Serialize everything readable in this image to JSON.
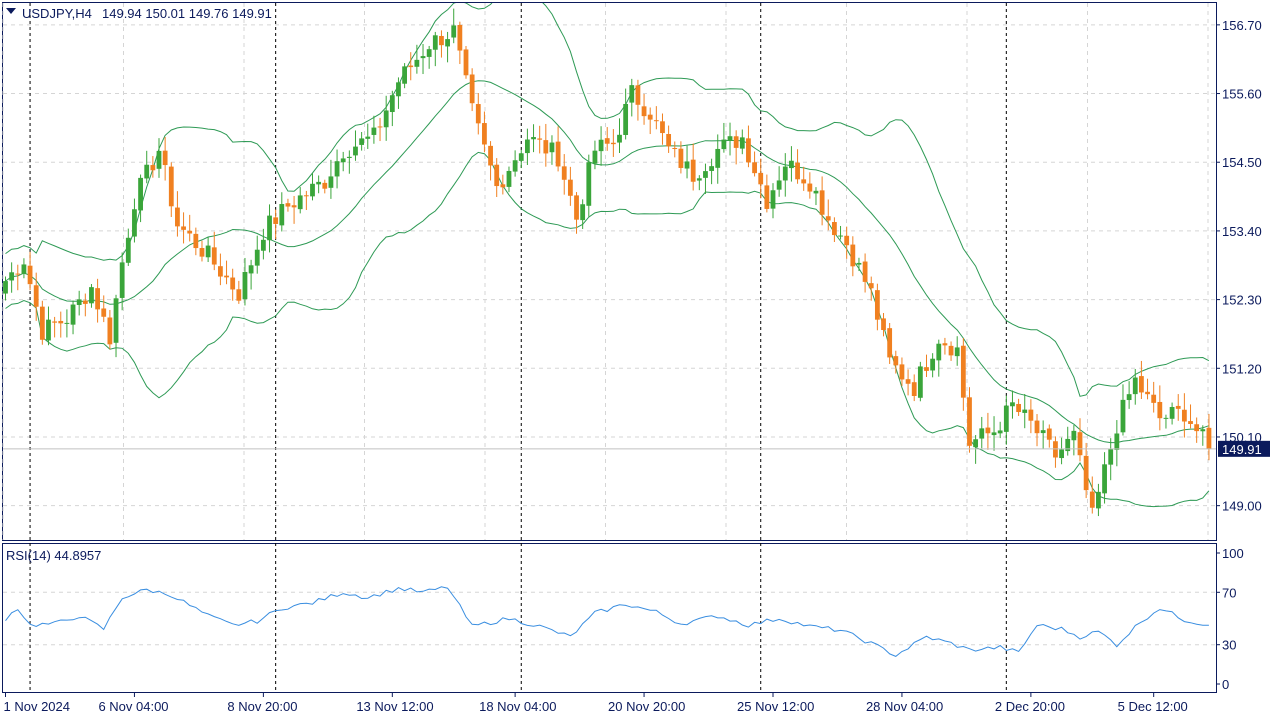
{
  "header": {
    "symbol": "USDJPY,H4",
    "ohlc": "149.94 150.01 149.76 149.91"
  },
  "rsi_header": {
    "label": "RSI(14) 44.8957"
  },
  "colors": {
    "bull": "#3aa53a",
    "bear": "#f08020",
    "band": "#2e9a55",
    "rsi_line": "#3a8ee0",
    "frame": "#0b1a5c",
    "grid": "#d5d5d5",
    "price_tag_bg": "#0b1a5c",
    "price_tag_text": "#ffffff"
  },
  "chart_data": [
    {
      "type": "candlestick",
      "panel": "price",
      "y_ticks": [
        "156.70",
        "155.60",
        "154.50",
        "153.40",
        "152.30",
        "151.20",
        "150.10",
        "149.00"
      ],
      "ylim": [
        148.45,
        157.05
      ],
      "current_price": "149.91",
      "x_ticks": [
        "1 Nov 2024",
        "6 Nov 04:00",
        "8 Nov 20:00",
        "13 Nov 12:00",
        "18 Nov 04:00",
        "20 Nov 20:00",
        "25 Nov 12:00",
        "28 Nov 04:00",
        "2 Dec 20:00",
        "5 Dec 12:00"
      ],
      "session_separators": [
        "4 Nov 2024",
        "11 Nov 2024",
        "18 Nov 2024",
        "25 Nov 2024",
        "2 Dec 2024"
      ],
      "candle_keyframes": [
        {
          "i": 0,
          "c": 152.6
        },
        {
          "i": 3,
          "c": 152.95
        },
        {
          "i": 6,
          "c": 151.8
        },
        {
          "i": 10,
          "c": 152.0
        },
        {
          "i": 14,
          "c": 152.5
        },
        {
          "i": 17,
          "c": 151.7
        },
        {
          "i": 19,
          "c": 152.9
        },
        {
          "i": 21,
          "c": 153.9
        },
        {
          "i": 25,
          "c": 154.7
        },
        {
          "i": 28,
          "c": 153.5
        },
        {
          "i": 33,
          "c": 153.0
        },
        {
          "i": 38,
          "c": 152.4
        },
        {
          "i": 42,
          "c": 153.4
        },
        {
          "i": 46,
          "c": 153.8
        },
        {
          "i": 52,
          "c": 154.2
        },
        {
          "i": 55,
          "c": 154.7
        },
        {
          "i": 60,
          "c": 154.9
        },
        {
          "i": 64,
          "c": 155.8
        },
        {
          "i": 69,
          "c": 156.4
        },
        {
          "i": 73,
          "c": 156.6
        },
        {
          "i": 76,
          "c": 155.3
        },
        {
          "i": 80,
          "c": 154.1
        },
        {
          "i": 85,
          "c": 154.9
        },
        {
          "i": 90,
          "c": 154.6
        },
        {
          "i": 93,
          "c": 153.6
        },
        {
          "i": 96,
          "c": 154.7
        },
        {
          "i": 99,
          "c": 154.8
        },
        {
          "i": 102,
          "c": 155.6
        },
        {
          "i": 105,
          "c": 155.3
        },
        {
          "i": 108,
          "c": 154.7
        },
        {
          "i": 112,
          "c": 154.3
        },
        {
          "i": 116,
          "c": 154.7
        },
        {
          "i": 120,
          "c": 154.9
        },
        {
          "i": 124,
          "c": 153.9
        },
        {
          "i": 127,
          "c": 154.5
        },
        {
          "i": 131,
          "c": 154.2
        },
        {
          "i": 134,
          "c": 153.6
        },
        {
          "i": 137,
          "c": 153.2
        },
        {
          "i": 141,
          "c": 152.4
        },
        {
          "i": 144,
          "c": 151.3
        },
        {
          "i": 148,
          "c": 150.9
        },
        {
          "i": 152,
          "c": 151.7
        },
        {
          "i": 155,
          "c": 151.5
        },
        {
          "i": 157,
          "c": 150.0
        },
        {
          "i": 161,
          "c": 150.2
        },
        {
          "i": 164,
          "c": 150.6
        },
        {
          "i": 167,
          "c": 150.3
        },
        {
          "i": 171,
          "c": 149.8
        },
        {
          "i": 174,
          "c": 150.1
        },
        {
          "i": 177,
          "c": 148.8
        },
        {
          "i": 181,
          "c": 150.3
        },
        {
          "i": 184,
          "c": 151.0
        },
        {
          "i": 188,
          "c": 150.4
        },
        {
          "i": 192,
          "c": 150.5
        },
        {
          "i": 196,
          "c": 149.91
        }
      ]
    },
    {
      "type": "line",
      "panel": "rsi",
      "name": "RSI(14)",
      "y_ticks": [
        "100",
        "70",
        "30",
        "0"
      ],
      "ylim": [
        0,
        100
      ],
      "keyframes": [
        {
          "i": 0,
          "v": 50
        },
        {
          "i": 2,
          "v": 58
        },
        {
          "i": 4,
          "v": 45
        },
        {
          "i": 8,
          "v": 46
        },
        {
          "i": 12,
          "v": 52
        },
        {
          "i": 16,
          "v": 42
        },
        {
          "i": 19,
          "v": 66
        },
        {
          "i": 23,
          "v": 72
        },
        {
          "i": 27,
          "v": 68
        },
        {
          "i": 33,
          "v": 52
        },
        {
          "i": 37,
          "v": 45
        },
        {
          "i": 41,
          "v": 48
        },
        {
          "i": 45,
          "v": 58
        },
        {
          "i": 50,
          "v": 62
        },
        {
          "i": 55,
          "v": 70
        },
        {
          "i": 59,
          "v": 66
        },
        {
          "i": 64,
          "v": 73
        },
        {
          "i": 68,
          "v": 70
        },
        {
          "i": 72,
          "v": 74
        },
        {
          "i": 76,
          "v": 44
        },
        {
          "i": 82,
          "v": 50
        },
        {
          "i": 87,
          "v": 44
        },
        {
          "i": 92,
          "v": 36
        },
        {
          "i": 96,
          "v": 54
        },
        {
          "i": 101,
          "v": 61
        },
        {
          "i": 106,
          "v": 55
        },
        {
          "i": 110,
          "v": 46
        },
        {
          "i": 116,
          "v": 52
        },
        {
          "i": 121,
          "v": 45
        },
        {
          "i": 126,
          "v": 50
        },
        {
          "i": 131,
          "v": 44
        },
        {
          "i": 136,
          "v": 41
        },
        {
          "i": 141,
          "v": 31
        },
        {
          "i": 145,
          "v": 22
        },
        {
          "i": 150,
          "v": 36
        },
        {
          "i": 154,
          "v": 31
        },
        {
          "i": 157,
          "v": 26
        },
        {
          "i": 162,
          "v": 28
        },
        {
          "i": 165,
          "v": 24
        },
        {
          "i": 168,
          "v": 45
        },
        {
          "i": 172,
          "v": 42
        },
        {
          "i": 175,
          "v": 36
        },
        {
          "i": 178,
          "v": 40
        },
        {
          "i": 181,
          "v": 30
        },
        {
          "i": 185,
          "v": 48
        },
        {
          "i": 188,
          "v": 58
        },
        {
          "i": 192,
          "v": 49
        },
        {
          "i": 196,
          "v": 44.9
        }
      ]
    }
  ]
}
